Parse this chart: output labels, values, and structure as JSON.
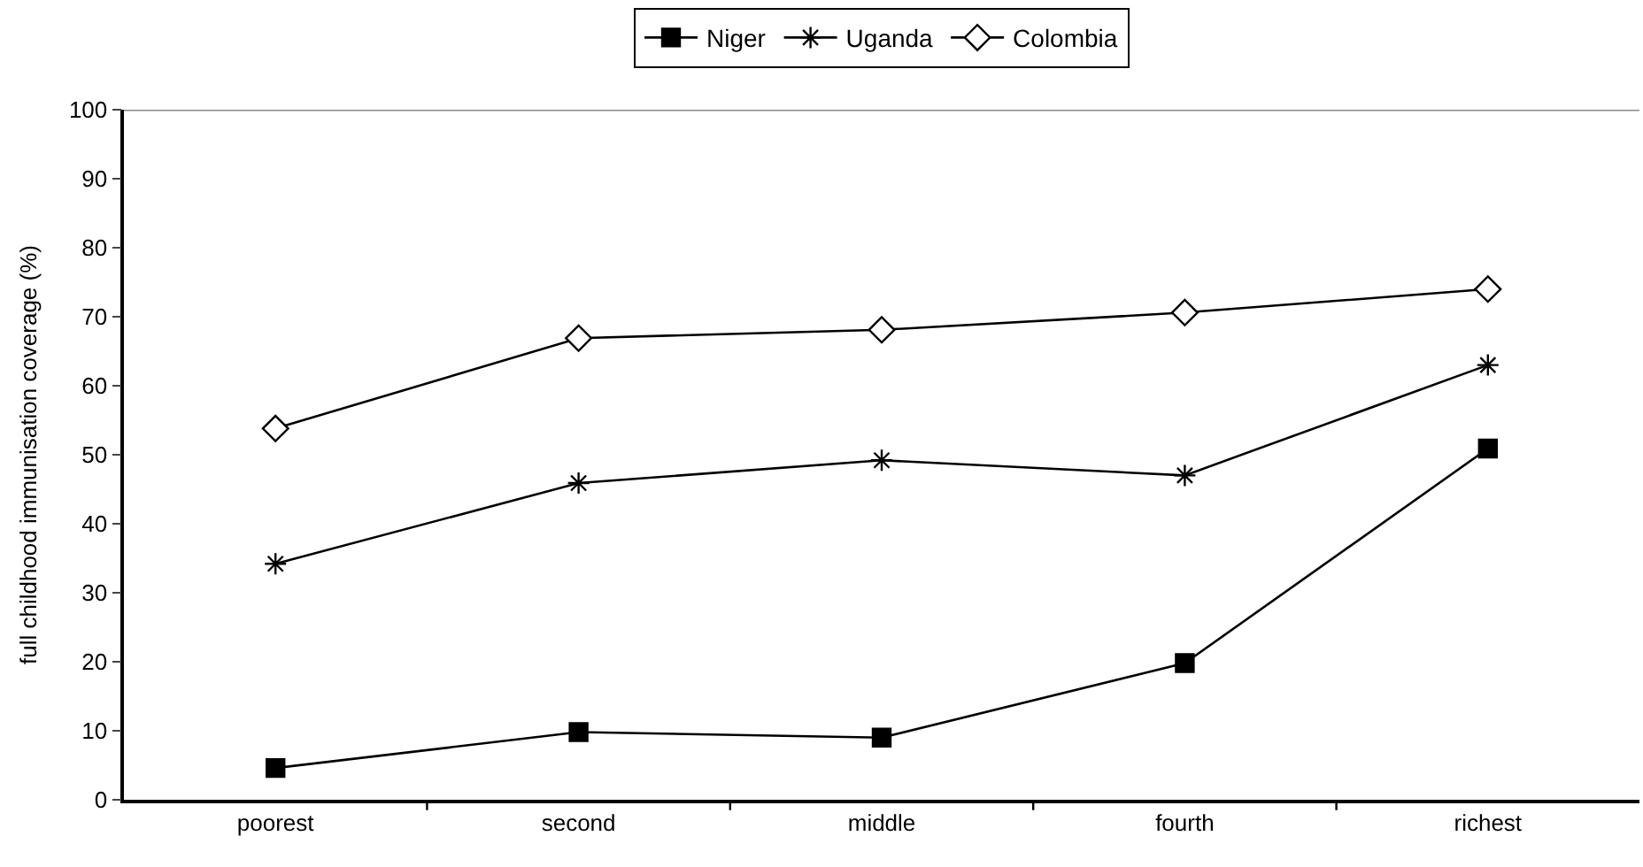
{
  "chart_data": {
    "type": "line",
    "ylabel": "full childhood immunisation coverage (%)",
    "categories": [
      "poorest",
      "second",
      "middle",
      "fourth",
      "richest"
    ],
    "series": [
      {
        "name": "Niger",
        "color": "#000000",
        "marker": "square",
        "values": [
          4.6,
          9.8,
          9.0,
          19.8,
          50.9
        ]
      },
      {
        "name": "Uganda",
        "color": "#000000",
        "marker": "cross",
        "values": [
          34.2,
          45.9,
          49.2,
          47.0,
          63.0
        ]
      },
      {
        "name": "Colombia",
        "color": "#000000",
        "marker": "diamond",
        "values": [
          53.8,
          66.9,
          68.1,
          70.6,
          74.0
        ]
      }
    ],
    "ylim": [
      0,
      100
    ],
    "yticks": [
      0,
      10,
      20,
      30,
      40,
      50,
      60,
      70,
      80,
      90,
      100
    ],
    "grid": false,
    "legend": "top",
    "line_style": "solid"
  }
}
